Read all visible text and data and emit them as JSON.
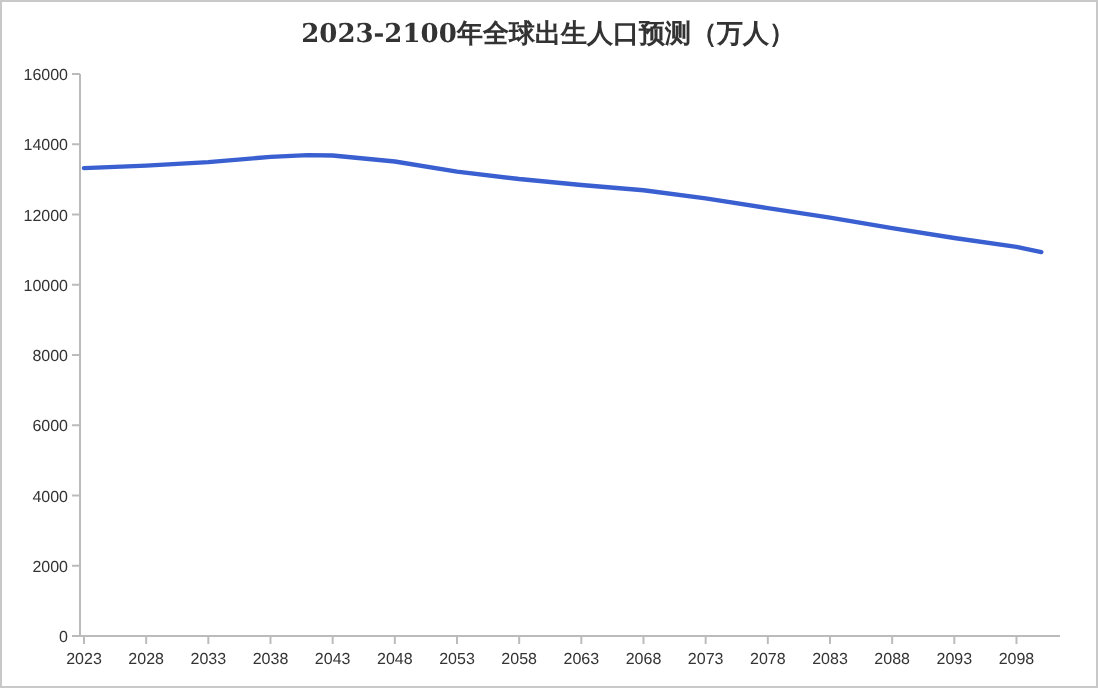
{
  "chart_data": {
    "type": "line",
    "title": "2023-2100年全球出生人口预测（万人）",
    "x": [
      2023,
      2028,
      2033,
      2038,
      2041,
      2043,
      2048,
      2053,
      2058,
      2063,
      2068,
      2073,
      2078,
      2083,
      2088,
      2093,
      2098,
      2100
    ],
    "values": [
      13320,
      13390,
      13490,
      13640,
      13690,
      13680,
      13510,
      13220,
      13010,
      12840,
      12690,
      12460,
      12180,
      11910,
      11610,
      11330,
      11080,
      10930
    ],
    "color": "#3a5fd0",
    "xlim": [
      2023,
      2101.5
    ],
    "xticks": [
      2023,
      2028,
      2033,
      2038,
      2043,
      2048,
      2053,
      2058,
      2063,
      2068,
      2073,
      2078,
      2083,
      2088,
      2093,
      2098
    ],
    "ylim": [
      0,
      16000
    ],
    "yticks": [
      0,
      2000,
      4000,
      6000,
      8000,
      10000,
      12000,
      14000,
      16000
    ]
  }
}
